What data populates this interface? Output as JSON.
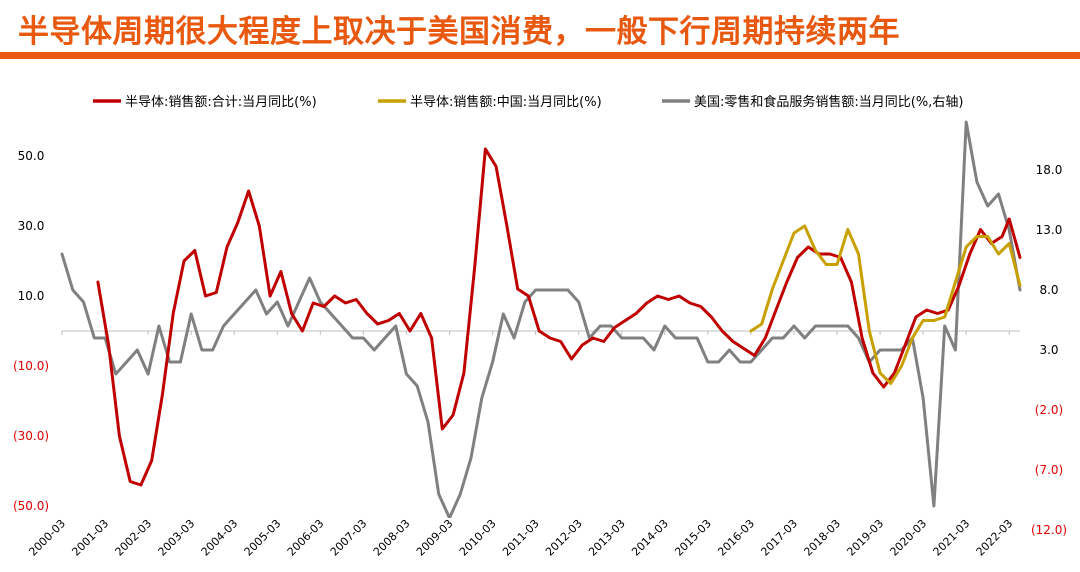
{
  "title": "半导体周期很大程度上取决于美国消费，一般下行周期持续两年",
  "chart_data": {
    "type": "line",
    "x_start": "2000-03",
    "x_end": "2022-06",
    "xticks": [
      "2000-03",
      "2001-03",
      "2002-03",
      "2003-03",
      "2004-03",
      "2005-03",
      "2006-03",
      "2007-03",
      "2008-03",
      "2009-03",
      "2010-03",
      "2011-03",
      "2012-03",
      "2013-03",
      "2014-03",
      "2015-03",
      "2016-03",
      "2017-03",
      "2018-03",
      "2019-03",
      "2020-03",
      "2021-03",
      "2022-03"
    ],
    "y_left": {
      "ticks": [
        50,
        30,
        10,
        -10,
        -30,
        -50
      ],
      "labels": [
        "50.0",
        "30.0",
        "10.0",
        "(10.0)",
        "(30.0)",
        "(50.0)"
      ],
      "range": [
        -50,
        60
      ]
    },
    "y_right": {
      "ticks": [
        18,
        13,
        8,
        3,
        -2,
        -7,
        -12
      ],
      "labels": [
        "18.0",
        "13.0",
        "8.0",
        "3.0",
        "(2.0)",
        "(7.0)",
        "(12.0)"
      ],
      "range": [
        -12,
        20
      ]
    },
    "colors": {
      "negative_label": "#e00000",
      "axis": "#bfbfbf"
    },
    "series": [
      {
        "name": "半导体:销售额:合计:当月同比(%)",
        "axis": "left",
        "color": "#c00000",
        "points": [
          [
            "2001-01",
            14
          ],
          [
            "2001-04",
            -4
          ],
          [
            "2001-07",
            -30
          ],
          [
            "2001-10",
            -43
          ],
          [
            "2002-01",
            -44
          ],
          [
            "2002-04",
            -37
          ],
          [
            "2002-07",
            -18
          ],
          [
            "2002-10",
            5
          ],
          [
            "2003-01",
            20
          ],
          [
            "2003-04",
            23
          ],
          [
            "2003-07",
            10
          ],
          [
            "2003-10",
            11
          ],
          [
            "2004-01",
            24
          ],
          [
            "2004-04",
            31
          ],
          [
            "2004-07",
            40
          ],
          [
            "2004-10",
            30
          ],
          [
            "2005-01",
            10
          ],
          [
            "2005-04",
            17
          ],
          [
            "2005-07",
            5
          ],
          [
            "2005-10",
            0
          ],
          [
            "2006-01",
            8
          ],
          [
            "2006-04",
            7
          ],
          [
            "2006-07",
            10
          ],
          [
            "2006-10",
            8
          ],
          [
            "2007-01",
            9
          ],
          [
            "2007-04",
            5
          ],
          [
            "2007-07",
            2
          ],
          [
            "2007-10",
            3
          ],
          [
            "2008-01",
            5
          ],
          [
            "2008-04",
            0
          ],
          [
            "2008-07",
            5
          ],
          [
            "2008-10",
            -2
          ],
          [
            "2009-01",
            -28
          ],
          [
            "2009-04",
            -24
          ],
          [
            "2009-07",
            -12
          ],
          [
            "2009-10",
            18
          ],
          [
            "2010-01",
            52
          ],
          [
            "2010-04",
            47
          ],
          [
            "2010-07",
            30
          ],
          [
            "2010-10",
            12
          ],
          [
            "2011-01",
            10
          ],
          [
            "2011-04",
            0
          ],
          [
            "2011-07",
            -2
          ],
          [
            "2011-10",
            -3
          ],
          [
            "2012-01",
            -8
          ],
          [
            "2012-04",
            -4
          ],
          [
            "2012-07",
            -2
          ],
          [
            "2012-10",
            -3
          ],
          [
            "2013-01",
            1
          ],
          [
            "2013-04",
            3
          ],
          [
            "2013-07",
            5
          ],
          [
            "2013-10",
            8
          ],
          [
            "2014-01",
            10
          ],
          [
            "2014-04",
            9
          ],
          [
            "2014-07",
            10
          ],
          [
            "2014-10",
            8
          ],
          [
            "2015-01",
            7
          ],
          [
            "2015-04",
            4
          ],
          [
            "2015-07",
            0
          ],
          [
            "2015-10",
            -3
          ],
          [
            "2016-01",
            -5
          ],
          [
            "2016-04",
            -7
          ],
          [
            "2016-07",
            -2
          ],
          [
            "2016-10",
            6
          ],
          [
            "2017-01",
            14
          ],
          [
            "2017-04",
            21
          ],
          [
            "2017-07",
            24
          ],
          [
            "2017-10",
            22
          ],
          [
            "2018-01",
            22
          ],
          [
            "2018-04",
            21
          ],
          [
            "2018-07",
            14
          ],
          [
            "2018-10",
            -2
          ],
          [
            "2019-01",
            -12
          ],
          [
            "2019-04",
            -16
          ],
          [
            "2019-07",
            -12
          ],
          [
            "2019-10",
            -4
          ],
          [
            "2020-01",
            4
          ],
          [
            "2020-04",
            6
          ],
          [
            "2020-07",
            5
          ],
          [
            "2020-10",
            6
          ],
          [
            "2021-01",
            13
          ],
          [
            "2021-04",
            22
          ],
          [
            "2021-07",
            29
          ],
          [
            "2021-10",
            25
          ],
          [
            "2022-01",
            27
          ],
          [
            "2022-03",
            32
          ],
          [
            "2022-06",
            21
          ]
        ]
      },
      {
        "name": "半导体:销售额:中国:当月同比(%)",
        "axis": "left",
        "color": "#c8a000",
        "points": [
          [
            "2016-03",
            0
          ],
          [
            "2016-06",
            2
          ],
          [
            "2016-09",
            12
          ],
          [
            "2016-12",
            20
          ],
          [
            "2017-03",
            28
          ],
          [
            "2017-06",
            30
          ],
          [
            "2017-09",
            23
          ],
          [
            "2017-12",
            19
          ],
          [
            "2018-03",
            19
          ],
          [
            "2018-06",
            29
          ],
          [
            "2018-09",
            22
          ],
          [
            "2018-12",
            0
          ],
          [
            "2019-03",
            -12
          ],
          [
            "2019-06",
            -15
          ],
          [
            "2019-09",
            -10
          ],
          [
            "2019-12",
            -2
          ],
          [
            "2020-03",
            3
          ],
          [
            "2020-06",
            3
          ],
          [
            "2020-09",
            4
          ],
          [
            "2020-12",
            14
          ],
          [
            "2021-03",
            24
          ],
          [
            "2021-06",
            27
          ],
          [
            "2021-09",
            27
          ],
          [
            "2021-12",
            22
          ],
          [
            "2022-03",
            25
          ],
          [
            "2022-06",
            13
          ]
        ]
      },
      {
        "name": "美国:零售和食品服务销售额:当月同比(%,右轴)",
        "axis": "right",
        "color": "#808080",
        "points": [
          [
            "2000-03",
            11
          ],
          [
            "2000-06",
            8
          ],
          [
            "2000-09",
            7
          ],
          [
            "2000-12",
            4
          ],
          [
            "2001-03",
            4
          ],
          [
            "2001-06",
            1
          ],
          [
            "2001-09",
            2
          ],
          [
            "2001-12",
            3
          ],
          [
            "2002-03",
            1
          ],
          [
            "2002-06",
            5
          ],
          [
            "2002-09",
            2
          ],
          [
            "2002-12",
            2
          ],
          [
            "2003-03",
            6
          ],
          [
            "2003-06",
            3
          ],
          [
            "2003-09",
            3
          ],
          [
            "2003-12",
            5
          ],
          [
            "2004-03",
            6
          ],
          [
            "2004-06",
            7
          ],
          [
            "2004-09",
            8
          ],
          [
            "2004-12",
            6
          ],
          [
            "2005-03",
            7
          ],
          [
            "2005-06",
            5
          ],
          [
            "2005-09",
            7
          ],
          [
            "2005-12",
            9
          ],
          [
            "2006-03",
            7
          ],
          [
            "2006-06",
            6
          ],
          [
            "2006-09",
            5
          ],
          [
            "2006-12",
            4
          ],
          [
            "2007-03",
            4
          ],
          [
            "2007-06",
            3
          ],
          [
            "2007-09",
            4
          ],
          [
            "2007-12",
            5
          ],
          [
            "2008-03",
            1
          ],
          [
            "2008-06",
            0
          ],
          [
            "2008-09",
            -3
          ],
          [
            "2008-12",
            -9
          ],
          [
            "2009-03",
            -11
          ],
          [
            "2009-06",
            -9
          ],
          [
            "2009-09",
            -6
          ],
          [
            "2009-12",
            -1
          ],
          [
            "2010-03",
            2
          ],
          [
            "2010-06",
            6
          ],
          [
            "2010-09",
            4
          ],
          [
            "2010-12",
            7
          ],
          [
            "2011-03",
            8
          ],
          [
            "2011-06",
            8
          ],
          [
            "2011-09",
            8
          ],
          [
            "2011-12",
            8
          ],
          [
            "2012-03",
            7
          ],
          [
            "2012-06",
            4
          ],
          [
            "2012-09",
            5
          ],
          [
            "2012-12",
            5
          ],
          [
            "2013-03",
            4
          ],
          [
            "2013-06",
            4
          ],
          [
            "2013-09",
            4
          ],
          [
            "2013-12",
            3
          ],
          [
            "2014-03",
            5
          ],
          [
            "2014-06",
            4
          ],
          [
            "2014-09",
            4
          ],
          [
            "2014-12",
            4
          ],
          [
            "2015-03",
            2
          ],
          [
            "2015-06",
            2
          ],
          [
            "2015-09",
            3
          ],
          [
            "2015-12",
            2
          ],
          [
            "2016-03",
            2
          ],
          [
            "2016-06",
            3
          ],
          [
            "2016-09",
            4
          ],
          [
            "2016-12",
            4
          ],
          [
            "2017-03",
            5
          ],
          [
            "2017-06",
            4
          ],
          [
            "2017-09",
            5
          ],
          [
            "2017-12",
            5
          ],
          [
            "2018-03",
            5
          ],
          [
            "2018-06",
            5
          ],
          [
            "2018-09",
            4
          ],
          [
            "2018-12",
            2
          ],
          [
            "2019-03",
            3
          ],
          [
            "2019-06",
            3
          ],
          [
            "2019-09",
            3
          ],
          [
            "2019-12",
            4
          ],
          [
            "2020-03",
            -1
          ],
          [
            "2020-06",
            -10
          ],
          [
            "2020-09",
            5
          ],
          [
            "2020-12",
            3
          ],
          [
            "2021-03",
            22
          ],
          [
            "2021-06",
            17
          ],
          [
            "2021-09",
            15
          ],
          [
            "2021-12",
            16
          ],
          [
            "2022-03",
            13
          ],
          [
            "2022-06",
            8
          ]
        ]
      }
    ]
  }
}
